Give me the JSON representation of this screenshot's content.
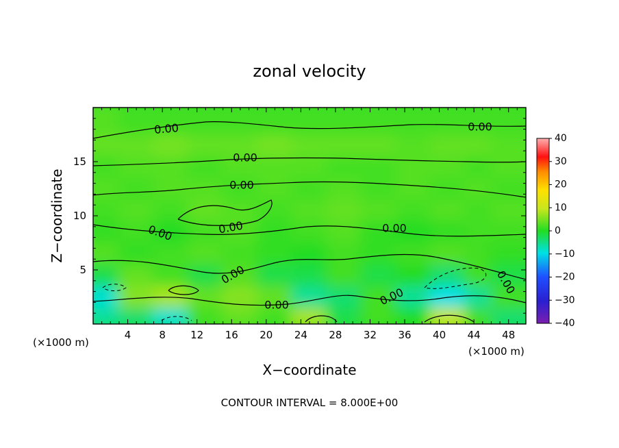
{
  "chart_data": {
    "type": "heatmap",
    "title": "zonal velocity",
    "xlabel": "X−coordinate",
    "ylabel": "Z−coordinate",
    "x_unit_left": "(×1000 m)",
    "x_unit_right": "(×1000 m)",
    "footer": "CONTOUR INTERVAL = 8.000E+00",
    "xlim": [
      0,
      50
    ],
    "ylim": [
      0,
      20
    ],
    "x_ticks": [
      4,
      8,
      12,
      16,
      20,
      24,
      28,
      32,
      36,
      40,
      44,
      48
    ],
    "y_ticks": [
      5,
      10,
      15
    ],
    "colorbar": {
      "min": -40,
      "max": 40,
      "ticks": [
        40,
        30,
        20,
        10,
        0,
        -10,
        -20,
        -30,
        -40
      ]
    },
    "contour_labels": [
      "0.00",
      "0.00",
      "0.00",
      "0.00",
      "0.00",
      "0.00",
      "0.00",
      "0.00",
      "0.00",
      "0.00",
      "0.00",
      "0.00"
    ],
    "field": {
      "x_centers": [
        2,
        6,
        10,
        14,
        18,
        22,
        26,
        30,
        34,
        38,
        42,
        46,
        49
      ],
      "z_centers": [
        1,
        3,
        5,
        7,
        9,
        11,
        13,
        15,
        17,
        19
      ],
      "values": [
        [
          -6,
          -4,
          -9,
          2,
          4,
          2,
          8,
          -2,
          2,
          0,
          10,
          2,
          -4
        ],
        [
          -9,
          6,
          8,
          4,
          6,
          4,
          -6,
          -4,
          2,
          -6,
          -10,
          -6,
          2
        ],
        [
          -2,
          4,
          2,
          -2,
          3,
          -2,
          -2,
          2,
          -2,
          0,
          -4,
          2,
          -2
        ],
        [
          3,
          1,
          2,
          3,
          2,
          1,
          0,
          2,
          1,
          2,
          3,
          2,
          1
        ],
        [
          1,
          2,
          0,
          2,
          3,
          1,
          2,
          3,
          1,
          0,
          1,
          2,
          2
        ],
        [
          2,
          3,
          2,
          4,
          3,
          2,
          3,
          4,
          3,
          2,
          3,
          2,
          3
        ],
        [
          3,
          2,
          3,
          3,
          2,
          3,
          2,
          3,
          2,
          3,
          2,
          3,
          2
        ],
        [
          2,
          3,
          3,
          2,
          3,
          3,
          3,
          2,
          2,
          3,
          3,
          2,
          3
        ],
        [
          4,
          4,
          5,
          4,
          4,
          5,
          4,
          4,
          4,
          3,
          4,
          4,
          3
        ],
        [
          3,
          2,
          2,
          2,
          2,
          2,
          2,
          2,
          2,
          2,
          2,
          2,
          2
        ]
      ]
    }
  }
}
